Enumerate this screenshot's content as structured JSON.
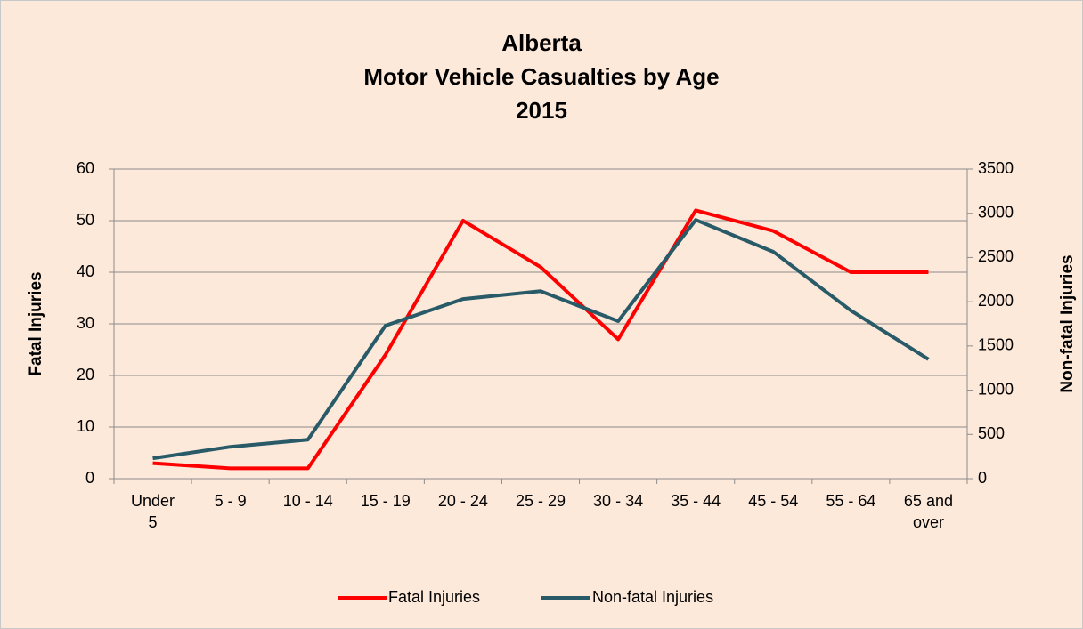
{
  "chart_data": {
    "type": "line",
    "title": "Alberta\nMotor Vehicle Casualties by Age\n2015",
    "ylabel": "Fatal Injuries",
    "y2label": "Non-fatal Injuries",
    "categories": [
      "Under 5",
      "5 - 9",
      "10 - 14",
      "15 - 19",
      "20 - 24",
      "25 - 29",
      "30 - 34",
      "35 - 44",
      "45 - 54",
      "55 - 64",
      "65 and over"
    ],
    "series": [
      {
        "name": "Fatal Injuries",
        "color": "#ff0000",
        "values": [
          3,
          2,
          2,
          24,
          50,
          41,
          27,
          52,
          48,
          40,
          40
        ]
      },
      {
        "name": "Non-fatal Injuries",
        "color": "#285a68",
        "axis": "y2",
        "values": [
          230,
          360,
          440,
          1730,
          2030,
          2120,
          1780,
          2925,
          2565,
          1900,
          1350
        ]
      }
    ],
    "ylim": [
      0,
      60
    ],
    "yticks": [
      0,
      10,
      20,
      30,
      40,
      50,
      60
    ],
    "y2lim": [
      0,
      3500
    ],
    "y2ticks": [
      0,
      500,
      1000,
      1500,
      2000,
      2500,
      3000,
      3500
    ],
    "grid": true,
    "legend": "bottom"
  }
}
